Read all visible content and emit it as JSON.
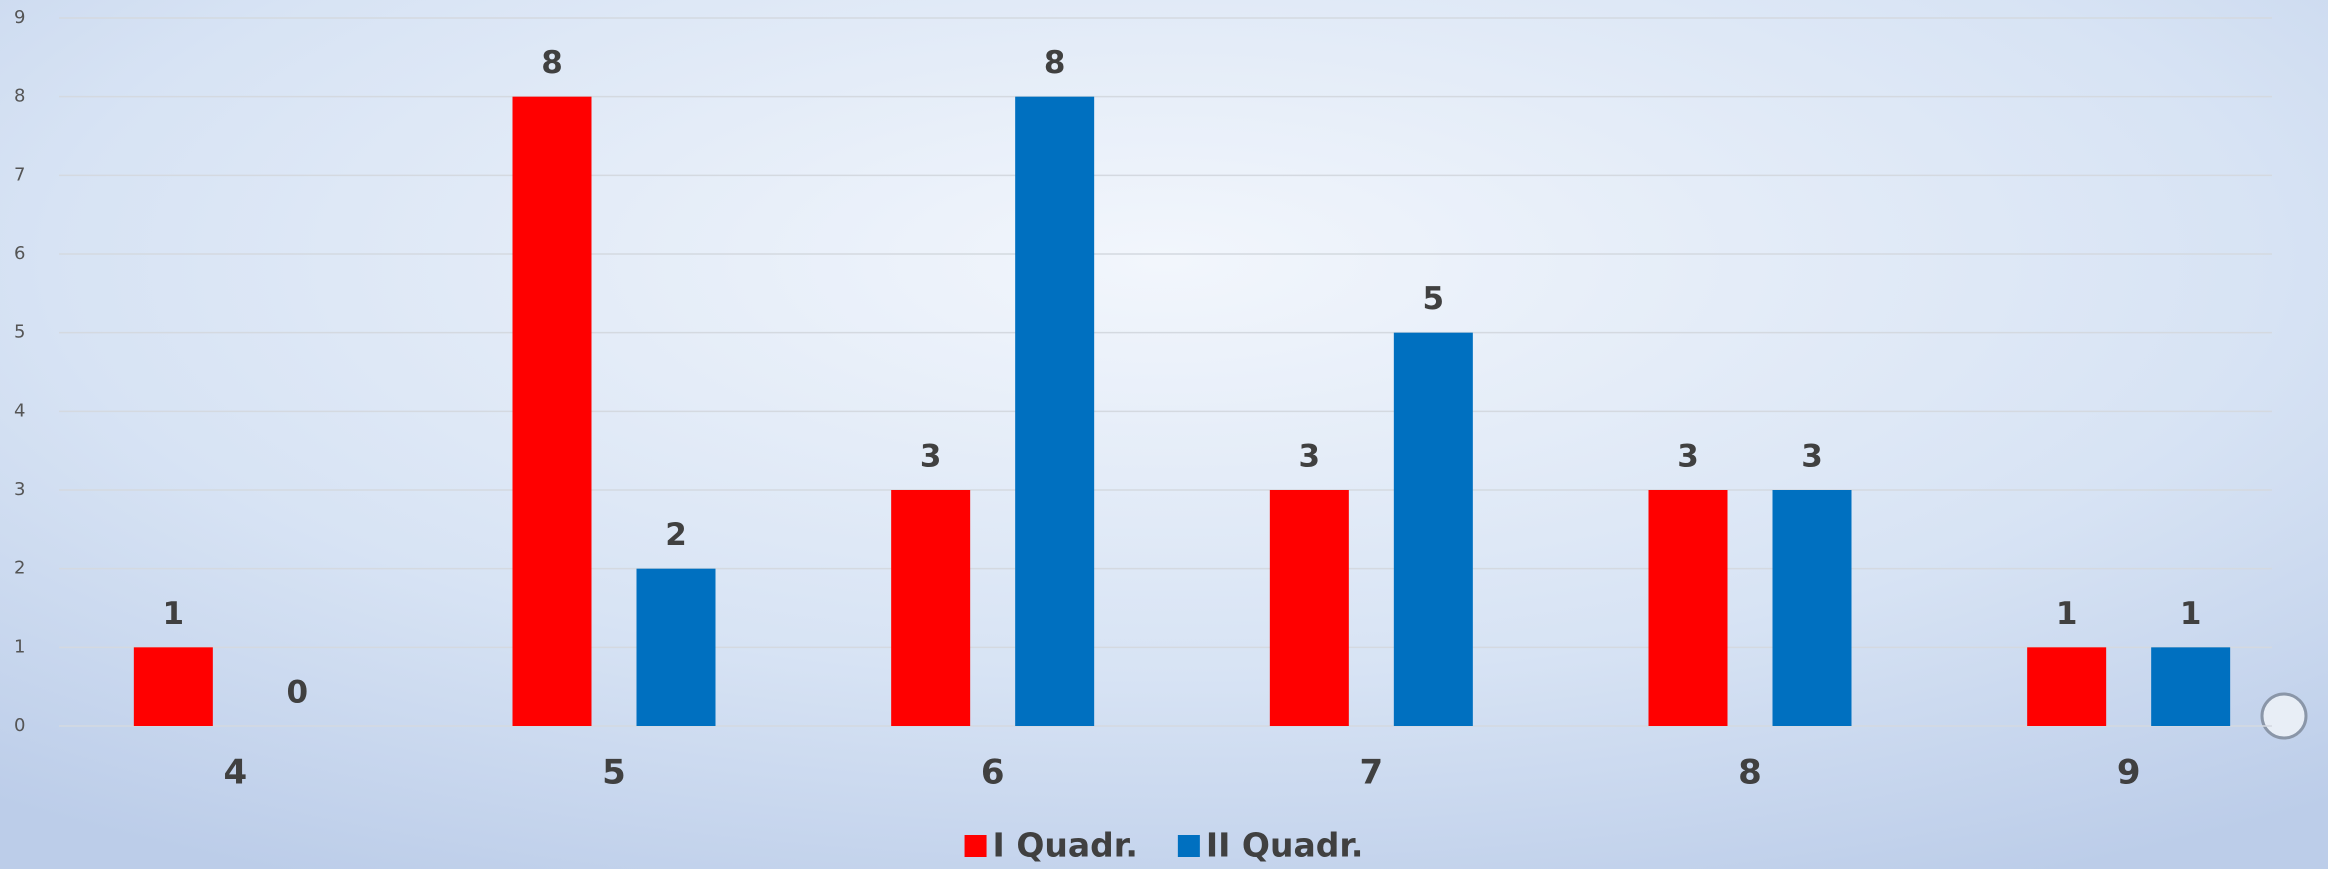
{
  "chart_data": {
    "type": "bar",
    "categories": [
      "4",
      "5",
      "6",
      "7",
      "8",
      "9"
    ],
    "series": [
      {
        "name": "I Quadr.",
        "color": "#ff0000",
        "values": [
          1,
          8,
          3,
          3,
          3,
          1
        ]
      },
      {
        "name": "II Quadr.",
        "color": "#0070c0",
        "values": [
          0,
          2,
          8,
          5,
          3,
          1
        ]
      }
    ],
    "ylim": [
      0,
      9
    ],
    "yticks": [
      0,
      1,
      2,
      3,
      4,
      5,
      6,
      7,
      8,
      9
    ],
    "grid": true,
    "legend": "bottom"
  }
}
